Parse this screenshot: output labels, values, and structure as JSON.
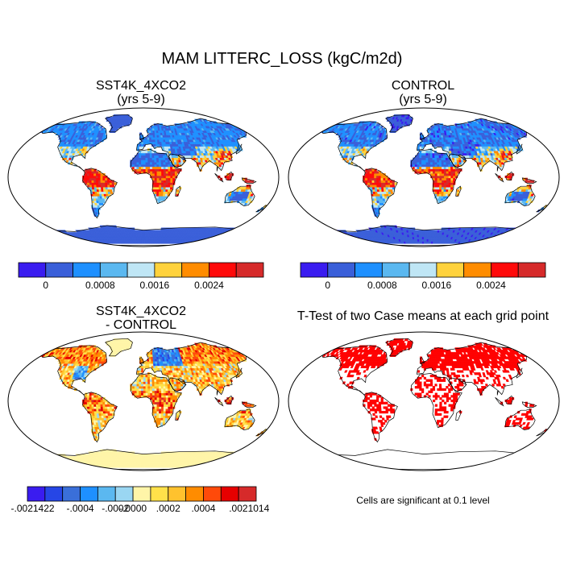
{
  "figure": {
    "title": "MAM LITTERC_LOSS (kgC/m2d)",
    "note": "Cells are significant at 0.1 level"
  },
  "panels": [
    {
      "id": "case",
      "title_line1": "SST4K_4XCO2",
      "title_line2": "(yrs 5-9)",
      "palette": "sequential"
    },
    {
      "id": "control",
      "title_line1": "CONTROL",
      "title_line2": "(yrs 5-9)",
      "palette": "sequential"
    },
    {
      "id": "diff",
      "title_line1": "SST4K_4XCO2",
      "title_line2": "- CONTROL",
      "palette": "diverging"
    },
    {
      "id": "ttest",
      "title_line1": "T-Test of two Case means at each grid point",
      "title_line2": "",
      "palette": "significance"
    }
  ],
  "colorbars": {
    "sequential": {
      "colors": [
        "#3a1cf0",
        "#3a5fd9",
        "#1e90ff",
        "#5bb8f0",
        "#bfe6f5",
        "#ffd23c",
        "#ff8c00",
        "#ff0a0a",
        "#d62a2a"
      ],
      "labels": [
        "0",
        "0.0008",
        "0.0016",
        "0.0024"
      ]
    },
    "diverging": {
      "colors": [
        "#3a1cf0",
        "#2646e6",
        "#3a6fd9",
        "#1e90ff",
        "#5bb8f0",
        "#9ad6f2",
        "#fff5a8",
        "#ffe14a",
        "#ffc22e",
        "#ff8c00",
        "#ff4a0a",
        "#e60000",
        "#d62a2a"
      ],
      "labels": [
        "-.0021422",
        "-.0004",
        "-.0002",
        "-.0000",
        ".0002",
        ".0004",
        ".0021014"
      ]
    }
  },
  "colors": {
    "ocean": "#ffffff",
    "significance": "#ff0000",
    "diff_background": "#fff5a8"
  }
}
